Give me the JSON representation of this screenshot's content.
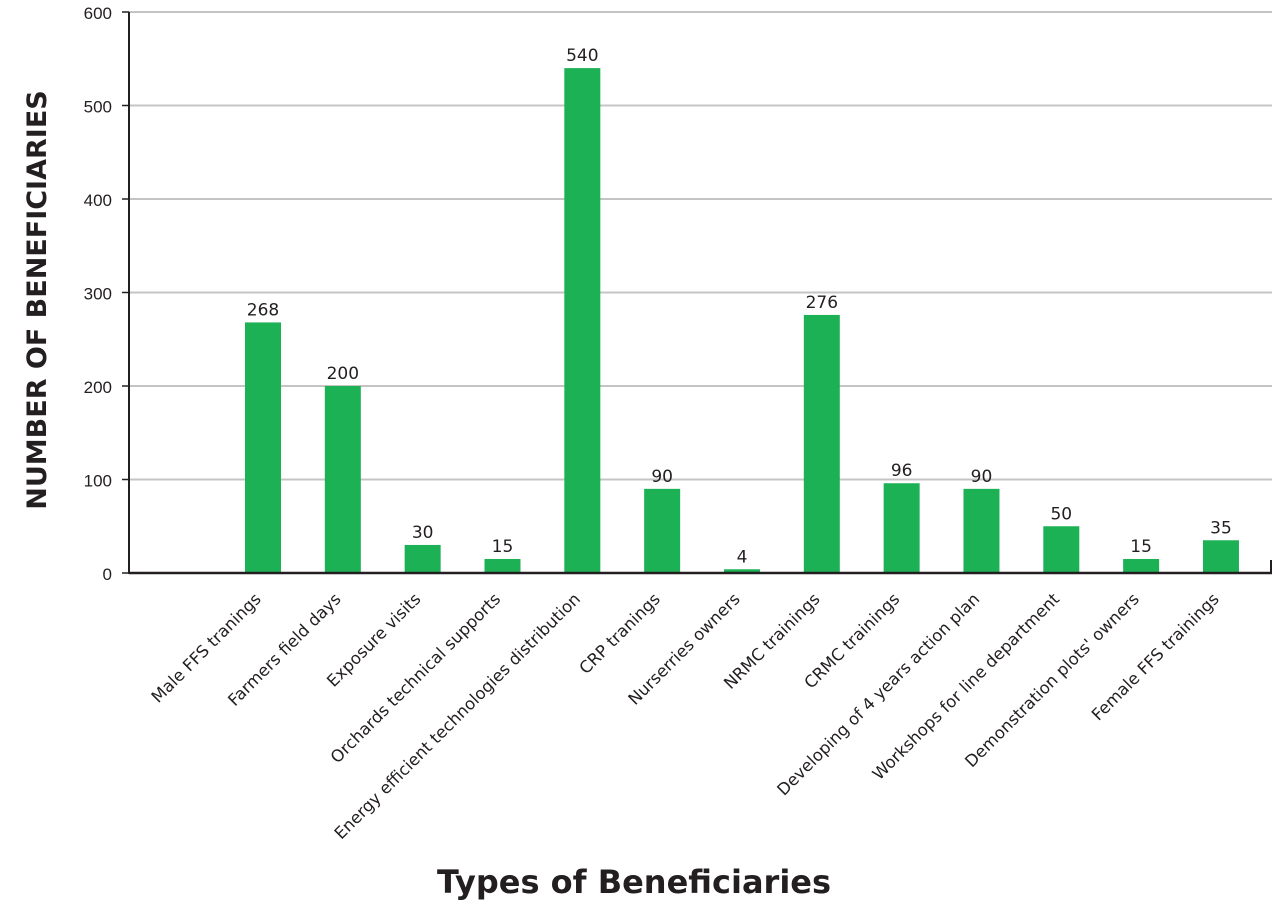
{
  "chart_data": {
    "type": "bar",
    "title": "",
    "xlabel": "Types of Beneficiaries",
    "ylabel": "NUMBER OF BENEFICIARIES",
    "ylim": [
      0,
      600
    ],
    "yticks": [
      0,
      100,
      200,
      300,
      400,
      500,
      600
    ],
    "grid": true,
    "legend": "none",
    "bar_color": "#1db155",
    "categories": [
      "Male FFS tranings",
      "Farmers field days",
      "Exposure visits",
      "Orchards technical supports",
      "Energy efficient technologies distribution",
      "CRP tranings",
      "Nurserries owners",
      "NRMC trainings",
      "CRMC trainings",
      "Developing of 4 years action plan",
      "Workshops for line department",
      "Demonstration plots' owners",
      "Female FFS trainings"
    ],
    "values": [
      268,
      200,
      30,
      15,
      540,
      90,
      4,
      276,
      96,
      90,
      50,
      15,
      35
    ]
  }
}
